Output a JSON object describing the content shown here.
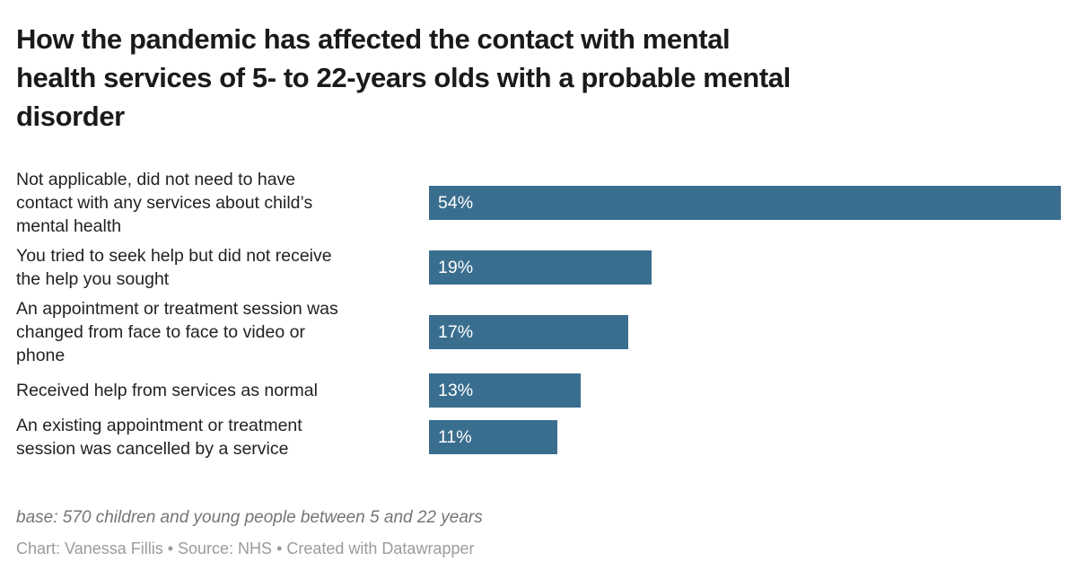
{
  "title_lines": [
    "How the pandemic has affected the contact with mental",
    "health services of 5- to 22-years olds with a probable mental",
    "disorder"
  ],
  "chart_data": {
    "type": "bar",
    "orientation": "horizontal",
    "title": "How the pandemic has affected the contact with mental health services of 5- to 22-years olds with a probable mental disorder",
    "categories": [
      "Not applicable, did not need to have contact with any services about child’s mental health",
      "You tried to seek help but did not receive the help you sought",
      "An appointment or treatment session was changed from face to face to video or phone",
      "Received help from services as normal",
      "An existing appointment or treatment session was cancelled by a service"
    ],
    "category_display_lines": [
      [
        "Not applicable, did not need to have",
        "contact with any services about child’s",
        "mental health"
      ],
      [
        "You tried to seek help but did not receive",
        "the help you sought"
      ],
      [
        "An appointment or treatment session was",
        "changed from face to face to video or",
        "phone"
      ],
      [
        "Received help from services as normal"
      ],
      [
        "An existing appointment or treatment",
        "session was cancelled by a service"
      ]
    ],
    "values": [
      54,
      19,
      17,
      13,
      11
    ],
    "value_labels": [
      "54%",
      "19%",
      "17%",
      "13%",
      "11%"
    ],
    "xlim": [
      0,
      54
    ],
    "grid": false,
    "legend": "none",
    "bar_color": "#3a6e8f",
    "value_label_color": "#ffffff"
  },
  "footer": {
    "note": "base: 570 children and young people between 5 and 22 years",
    "credit": "Chart: Vanessa Fillis • Source: NHS • Created with Datawrapper"
  }
}
